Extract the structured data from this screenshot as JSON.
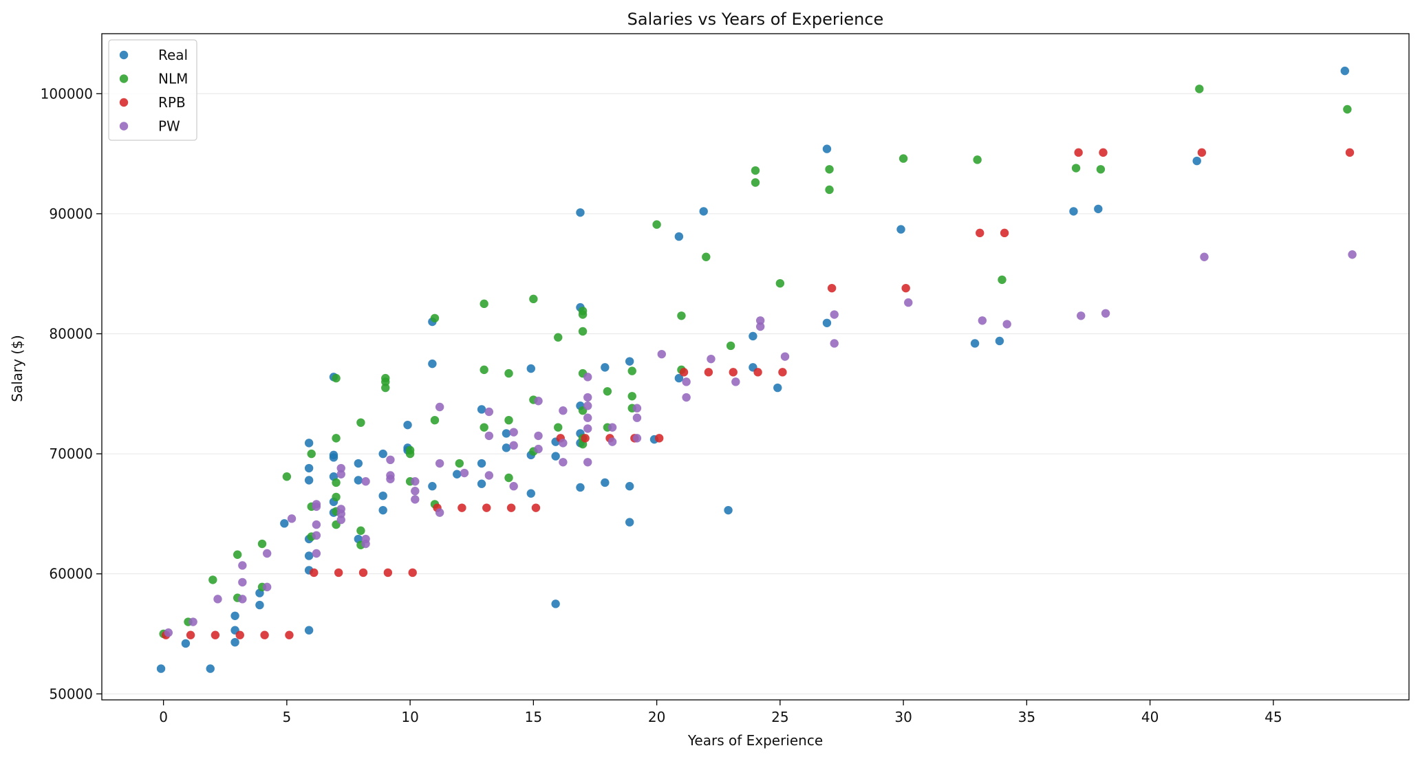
{
  "chart_data": {
    "type": "scatter",
    "title": "Salaries vs Years of Experience",
    "xlabel": "Years of Experience",
    "ylabel": "Salary ($)",
    "xlim": [
      -2.5,
      50.5
    ],
    "ylim": [
      49500,
      105000
    ],
    "xticks": [
      0,
      5,
      10,
      15,
      20,
      25,
      30,
      35,
      40,
      45
    ],
    "yticks": [
      50000,
      60000,
      70000,
      80000,
      90000,
      100000
    ],
    "grid": "horizontal",
    "legend_position": "top-left",
    "series": [
      {
        "name": "Real",
        "color": "#1f77b4",
        "points": [
          [
            -0.1,
            52100
          ],
          [
            0.9,
            54200
          ],
          [
            1.9,
            52100
          ],
          [
            2.9,
            54300
          ],
          [
            2.9,
            55300
          ],
          [
            2.9,
            56500
          ],
          [
            3.9,
            57400
          ],
          [
            3.9,
            58400
          ],
          [
            4.9,
            64200
          ],
          [
            5.9,
            55300
          ],
          [
            5.9,
            60300
          ],
          [
            5.9,
            61500
          ],
          [
            5.9,
            62900
          ],
          [
            5.9,
            67800
          ],
          [
            5.9,
            68800
          ],
          [
            5.9,
            70900
          ],
          [
            6.9,
            65100
          ],
          [
            6.9,
            66000
          ],
          [
            6.9,
            68100
          ],
          [
            6.9,
            69700
          ],
          [
            6.9,
            69900
          ],
          [
            6.9,
            76400
          ],
          [
            7.9,
            62900
          ],
          [
            7.9,
            67800
          ],
          [
            7.9,
            69200
          ],
          [
            8.9,
            65300
          ],
          [
            8.9,
            66500
          ],
          [
            8.9,
            70000
          ],
          [
            9.9,
            70300
          ],
          [
            9.9,
            70500
          ],
          [
            9.9,
            72400
          ],
          [
            10.9,
            67300
          ],
          [
            10.9,
            77500
          ],
          [
            10.9,
            81000
          ],
          [
            11.9,
            68300
          ],
          [
            12.9,
            67500
          ],
          [
            12.9,
            69200
          ],
          [
            12.9,
            73700
          ],
          [
            13.9,
            70500
          ],
          [
            13.9,
            71700
          ],
          [
            14.9,
            66700
          ],
          [
            14.9,
            69900
          ],
          [
            14.9,
            77100
          ],
          [
            15.9,
            57500
          ],
          [
            15.9,
            69800
          ],
          [
            15.9,
            71000
          ],
          [
            16.9,
            67200
          ],
          [
            16.9,
            70900
          ],
          [
            16.9,
            71700
          ],
          [
            16.9,
            74000
          ],
          [
            16.9,
            82200
          ],
          [
            16.9,
            90100
          ],
          [
            17.9,
            67600
          ],
          [
            17.9,
            77200
          ],
          [
            18.9,
            64300
          ],
          [
            18.9,
            67300
          ],
          [
            18.9,
            77700
          ],
          [
            19.9,
            71200
          ],
          [
            20.9,
            76300
          ],
          [
            20.9,
            88100
          ],
          [
            21.9,
            90200
          ],
          [
            22.9,
            65300
          ],
          [
            23.9,
            77200
          ],
          [
            23.9,
            79800
          ],
          [
            24.9,
            75500
          ],
          [
            26.9,
            80900
          ],
          [
            26.9,
            95400
          ],
          [
            29.9,
            88700
          ],
          [
            32.9,
            79200
          ],
          [
            33.9,
            79400
          ],
          [
            36.9,
            90200
          ],
          [
            37.9,
            90400
          ],
          [
            41.9,
            94400
          ],
          [
            47.9,
            101900
          ]
        ]
      },
      {
        "name": "NLM",
        "color": "#2ca02c",
        "points": [
          [
            0.0,
            55000
          ],
          [
            1.0,
            56000
          ],
          [
            2.0,
            59500
          ],
          [
            3.0,
            58000
          ],
          [
            3.0,
            61600
          ],
          [
            4.0,
            58900
          ],
          [
            4.0,
            62500
          ],
          [
            5.0,
            68100
          ],
          [
            6.0,
            63100
          ],
          [
            6.0,
            65600
          ],
          [
            6.0,
            70000
          ],
          [
            7.0,
            64100
          ],
          [
            7.0,
            65200
          ],
          [
            7.0,
            66400
          ],
          [
            7.0,
            67600
          ],
          [
            7.0,
            71300
          ],
          [
            7.0,
            76300
          ],
          [
            8.0,
            62400
          ],
          [
            8.0,
            63600
          ],
          [
            8.0,
            72600
          ],
          [
            9.0,
            75500
          ],
          [
            9.0,
            76000
          ],
          [
            9.0,
            76300
          ],
          [
            10.0,
            67700
          ],
          [
            10.0,
            70000
          ],
          [
            10.0,
            70300
          ],
          [
            11.0,
            65800
          ],
          [
            11.0,
            72800
          ],
          [
            11.0,
            81300
          ],
          [
            12.0,
            69200
          ],
          [
            13.0,
            72200
          ],
          [
            13.0,
            77000
          ],
          [
            13.0,
            82500
          ],
          [
            14.0,
            68000
          ],
          [
            14.0,
            72800
          ],
          [
            14.0,
            76700
          ],
          [
            15.0,
            70200
          ],
          [
            15.0,
            74500
          ],
          [
            15.0,
            82900
          ],
          [
            16.0,
            72200
          ],
          [
            16.0,
            79700
          ],
          [
            17.0,
            70800
          ],
          [
            17.0,
            71300
          ],
          [
            17.0,
            73600
          ],
          [
            17.0,
            76700
          ],
          [
            17.0,
            80200
          ],
          [
            17.0,
            81600
          ],
          [
            17.0,
            81900
          ],
          [
            18.0,
            72200
          ],
          [
            18.0,
            75200
          ],
          [
            19.0,
            73800
          ],
          [
            19.0,
            74800
          ],
          [
            19.0,
            76900
          ],
          [
            20.0,
            89100
          ],
          [
            21.0,
            77000
          ],
          [
            21.0,
            81500
          ],
          [
            22.0,
            86400
          ],
          [
            23.0,
            79000
          ],
          [
            24.0,
            92600
          ],
          [
            24.0,
            93600
          ],
          [
            25.0,
            84200
          ],
          [
            27.0,
            92000
          ],
          [
            27.0,
            93700
          ],
          [
            30.0,
            94600
          ],
          [
            33.0,
            94500
          ],
          [
            34.0,
            84500
          ],
          [
            37.0,
            93800
          ],
          [
            38.0,
            93700
          ],
          [
            42.0,
            100400
          ],
          [
            48.0,
            98700
          ]
        ]
      },
      {
        "name": "RPB",
        "color": "#d62728",
        "points": [
          [
            0.1,
            54900
          ],
          [
            1.1,
            54900
          ],
          [
            2.1,
            54900
          ],
          [
            3.1,
            54900
          ],
          [
            4.1,
            54900
          ],
          [
            5.1,
            54900
          ],
          [
            6.1,
            60100
          ],
          [
            7.1,
            60100
          ],
          [
            8.1,
            60100
          ],
          [
            9.1,
            60100
          ],
          [
            10.1,
            60100
          ],
          [
            11.1,
            65500
          ],
          [
            12.1,
            65500
          ],
          [
            13.1,
            65500
          ],
          [
            14.1,
            65500
          ],
          [
            15.1,
            65500
          ],
          [
            16.1,
            71300
          ],
          [
            17.1,
            71300
          ],
          [
            18.1,
            71300
          ],
          [
            19.1,
            71300
          ],
          [
            20.1,
            71300
          ],
          [
            21.1,
            76800
          ],
          [
            22.1,
            76800
          ],
          [
            23.1,
            76800
          ],
          [
            24.1,
            76800
          ],
          [
            25.1,
            76800
          ],
          [
            27.1,
            83800
          ],
          [
            30.1,
            83800
          ],
          [
            33.1,
            88400
          ],
          [
            34.1,
            88400
          ],
          [
            37.1,
            95100
          ],
          [
            38.1,
            95100
          ],
          [
            42.1,
            95100
          ],
          [
            48.1,
            95100
          ]
        ]
      },
      {
        "name": "PW",
        "color": "#9467bd",
        "points": [
          [
            0.2,
            55100
          ],
          [
            1.2,
            56000
          ],
          [
            2.2,
            57900
          ],
          [
            3.2,
            57900
          ],
          [
            3.2,
            59300
          ],
          [
            3.2,
            60700
          ],
          [
            4.2,
            58900
          ],
          [
            4.2,
            61700
          ],
          [
            5.2,
            64600
          ],
          [
            6.2,
            61700
          ],
          [
            6.2,
            63200
          ],
          [
            6.2,
            64100
          ],
          [
            6.2,
            65600
          ],
          [
            6.2,
            65800
          ],
          [
            7.2,
            64500
          ],
          [
            7.2,
            65000
          ],
          [
            7.2,
            65400
          ],
          [
            7.2,
            68300
          ],
          [
            7.2,
            68800
          ],
          [
            8.2,
            62500
          ],
          [
            8.2,
            62900
          ],
          [
            8.2,
            67700
          ],
          [
            9.2,
            67900
          ],
          [
            9.2,
            68200
          ],
          [
            9.2,
            69500
          ],
          [
            10.2,
            66200
          ],
          [
            10.2,
            66900
          ],
          [
            10.2,
            67700
          ],
          [
            11.2,
            65100
          ],
          [
            11.2,
            69200
          ],
          [
            11.2,
            73900
          ],
          [
            12.2,
            68400
          ],
          [
            13.2,
            68200
          ],
          [
            13.2,
            71500
          ],
          [
            13.2,
            73500
          ],
          [
            14.2,
            67300
          ],
          [
            14.2,
            70700
          ],
          [
            14.2,
            71800
          ],
          [
            15.2,
            70400
          ],
          [
            15.2,
            71500
          ],
          [
            15.2,
            74400
          ],
          [
            16.2,
            69300
          ],
          [
            16.2,
            70900
          ],
          [
            16.2,
            73600
          ],
          [
            17.2,
            69300
          ],
          [
            17.2,
            72100
          ],
          [
            17.2,
            73000
          ],
          [
            17.2,
            74000
          ],
          [
            17.2,
            74700
          ],
          [
            17.2,
            76400
          ],
          [
            18.2,
            71000
          ],
          [
            18.2,
            72200
          ],
          [
            19.2,
            71300
          ],
          [
            19.2,
            73000
          ],
          [
            19.2,
            73800
          ],
          [
            20.2,
            78300
          ],
          [
            21.2,
            74700
          ],
          [
            21.2,
            76000
          ],
          [
            22.2,
            77900
          ],
          [
            23.2,
            76000
          ],
          [
            24.2,
            80600
          ],
          [
            24.2,
            81100
          ],
          [
            25.2,
            78100
          ],
          [
            27.2,
            79200
          ],
          [
            27.2,
            81600
          ],
          [
            30.2,
            82600
          ],
          [
            33.2,
            81100
          ],
          [
            34.2,
            80800
          ],
          [
            37.2,
            81500
          ],
          [
            38.2,
            81700
          ],
          [
            42.2,
            86400
          ],
          [
            48.2,
            86600
          ]
        ]
      }
    ]
  }
}
